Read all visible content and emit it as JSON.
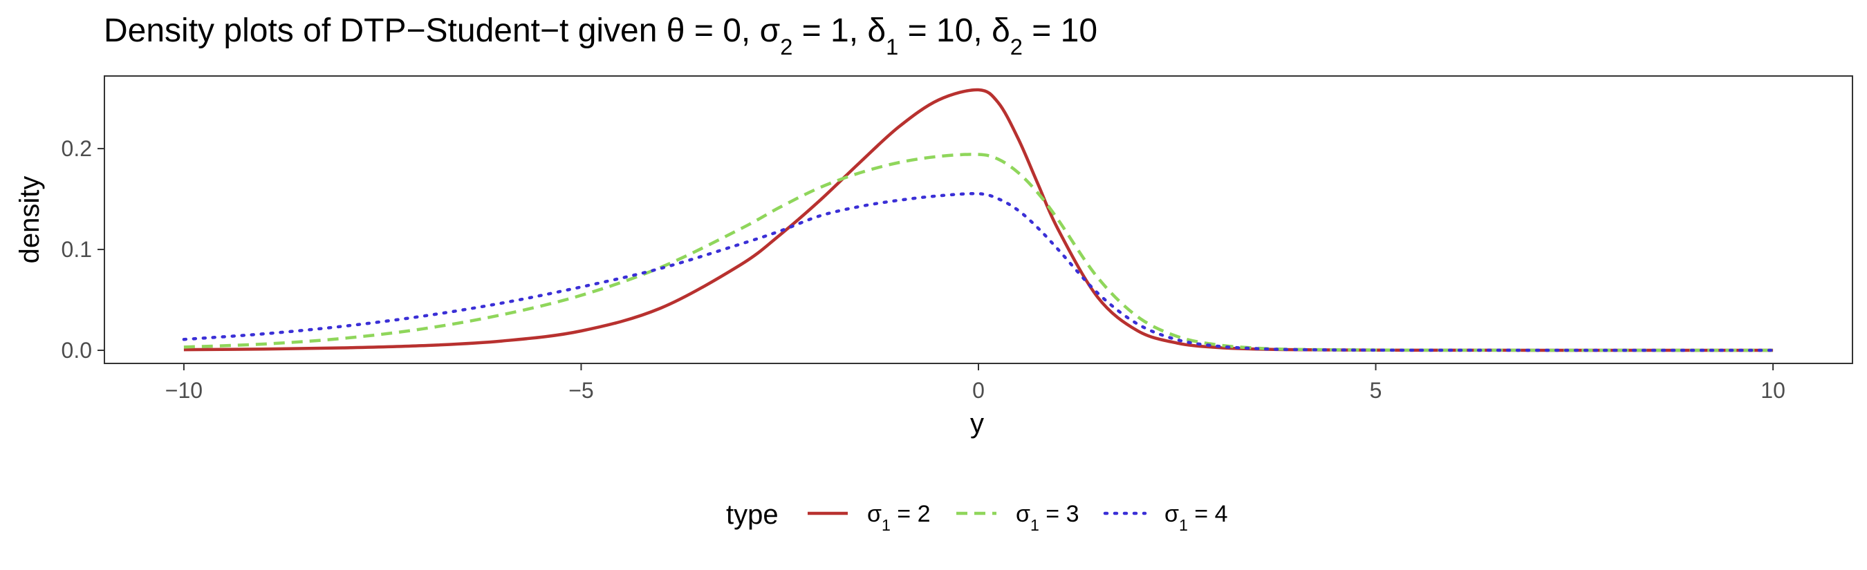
{
  "chart_data": {
    "type": "line",
    "title": {
      "prefix": "Density plots of DTP−Student−t given ",
      "theta_sym": "θ",
      "theta_val": " = 0, ",
      "sigma_sym": "σ",
      "sigma2_sub": "2",
      "sigma2_val": " = 1, ",
      "delta_sym": "δ",
      "delta1_sub": "1",
      "delta1_val": " = 10, ",
      "delta2_sub": "2",
      "delta2_val": " = 10"
    },
    "xlabel": "y",
    "ylabel": "density",
    "xlim": [
      -11,
      11
    ],
    "ylim": [
      -0.013,
      0.272
    ],
    "x_ticks": [
      -10,
      -5,
      0,
      5,
      10
    ],
    "x_tick_labels": [
      "−10",
      "−5",
      "0",
      "5",
      "10"
    ],
    "y_ticks": [
      0.0,
      0.1,
      0.2
    ],
    "y_tick_labels": [
      "0.0",
      "0.1",
      "0.2"
    ],
    "grid": false,
    "legend": {
      "position": "bottom",
      "title": "type",
      "symbol": "σ",
      "subscript": "1"
    },
    "x": [
      -10,
      -9,
      -8,
      -7,
      -6,
      -5,
      -4,
      -3,
      -2.5,
      -2,
      -1.5,
      -1,
      -0.5,
      0,
      0.25,
      0.5,
      0.75,
      1,
      1.5,
      2,
      2.5,
      3,
      3.5,
      4,
      5,
      6,
      7,
      8,
      9,
      10
    ],
    "series": [
      {
        "label_value": " = 2",
        "color": "#b8312f",
        "dash": "solid",
        "values": [
          0.0006,
          0.0012,
          0.0024,
          0.0046,
          0.0092,
          0.0192,
          0.0418,
          0.0845,
          0.1143,
          0.1483,
          0.1857,
          0.2217,
          0.2483,
          0.2583,
          0.2455,
          0.2099,
          0.1647,
          0.1203,
          0.0527,
          0.0195,
          0.0072,
          0.0028,
          0.0012,
          0.0006,
          0.0002,
          0.0001,
          5e-05,
          3e-05,
          2e-05,
          1e-05
        ]
      },
      {
        "label_value": " = 3",
        "color": "#8fd65b",
        "dash": "dashed",
        "values": [
          0.0032,
          0.0062,
          0.0118,
          0.0212,
          0.0352,
          0.0545,
          0.0822,
          0.1202,
          0.1418,
          0.1612,
          0.1758,
          0.1862,
          0.1923,
          0.1942,
          0.1895,
          0.1762,
          0.1558,
          0.1298,
          0.0722,
          0.0335,
          0.0138,
          0.0055,
          0.0022,
          0.0009,
          0.0003,
          0.0001,
          6e-05,
          3e-05,
          2e-05,
          1e-05
        ]
      },
      {
        "label_value": " = 4",
        "color": "#3a2fd6",
        "dash": "dotted",
        "values": [
          0.0108,
          0.0163,
          0.0238,
          0.0338,
          0.0468,
          0.0628,
          0.0812,
          0.1052,
          0.1182,
          0.1332,
          0.1425,
          0.1488,
          0.1532,
          0.1553,
          0.1502,
          0.1388,
          0.1212,
          0.1002,
          0.0568,
          0.0262,
          0.0105,
          0.0042,
          0.0017,
          0.0007,
          0.0002,
          0.0001,
          5e-05,
          3e-05,
          2e-05,
          1e-05
        ]
      }
    ]
  }
}
